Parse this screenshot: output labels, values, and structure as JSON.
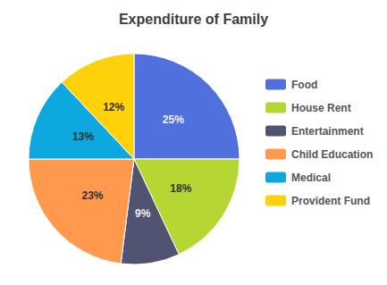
{
  "chart_data": {
    "type": "pie",
    "title": "Expenditure of Family",
    "categories": [
      "Food",
      "House Rent",
      "Entertainment",
      "Child Education",
      "Medical",
      "Provident Fund"
    ],
    "values": [
      25,
      18,
      9,
      23,
      13,
      12
    ],
    "value_labels": [
      "25%",
      "18%",
      "9%",
      "23%",
      "13%",
      "12%"
    ],
    "data_labels": true,
    "legend": "right"
  }
}
